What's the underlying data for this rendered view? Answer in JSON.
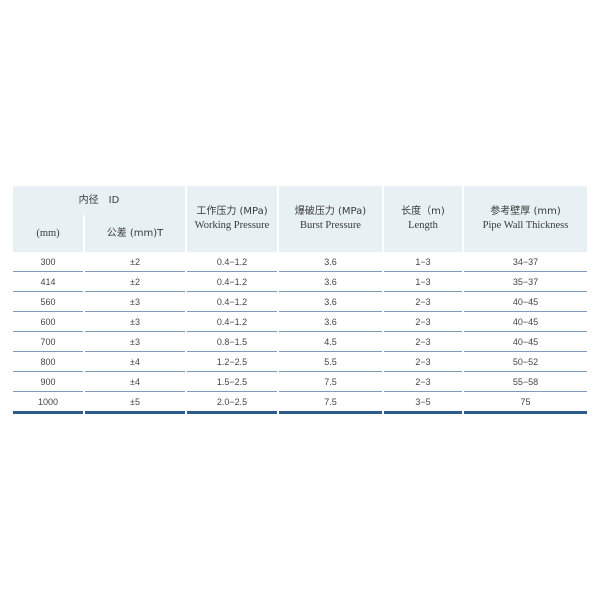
{
  "table": {
    "header": {
      "id_group": "内径　ID",
      "id_mm": "(mm)",
      "tolerance": "公差 (mm)T",
      "working_cn": "工作压力 (MPa)",
      "working_en": "Working Pressure",
      "burst_cn": "爆破压力 (MPa)",
      "burst_en": "Burst Pressure",
      "length_cn": "长度（m)",
      "length_en": "Length",
      "wall_cn": "参考壁厚 (mm)",
      "wall_en": "Pipe Wall Thickness"
    },
    "rows": [
      [
        "300",
        "±2",
        "0.4−1.2",
        "3.6",
        "1−3",
        "34−37"
      ],
      [
        "414",
        "±2",
        "0.4−1.2",
        "3.6",
        "1−3",
        "35−37"
      ],
      [
        "560",
        "±3",
        "0.4−1.2",
        "3.6",
        "2−3",
        "40−45"
      ],
      [
        "600",
        "±3",
        "0.4−1.2",
        "3.6",
        "2−3",
        "40−45"
      ],
      [
        "700",
        "±3",
        "0.8−1.5",
        "4.5",
        "2−3",
        "40−45"
      ],
      [
        "800",
        "±4",
        "1.2−2.5",
        "5.5",
        "2−3",
        "50−52"
      ],
      [
        "900",
        "±4",
        "1.5−2.5",
        "7.5",
        "2−3",
        "55−58"
      ],
      [
        "1000",
        "±5",
        "2.0−2.5",
        "7.5",
        "3−5",
        "75"
      ]
    ]
  }
}
